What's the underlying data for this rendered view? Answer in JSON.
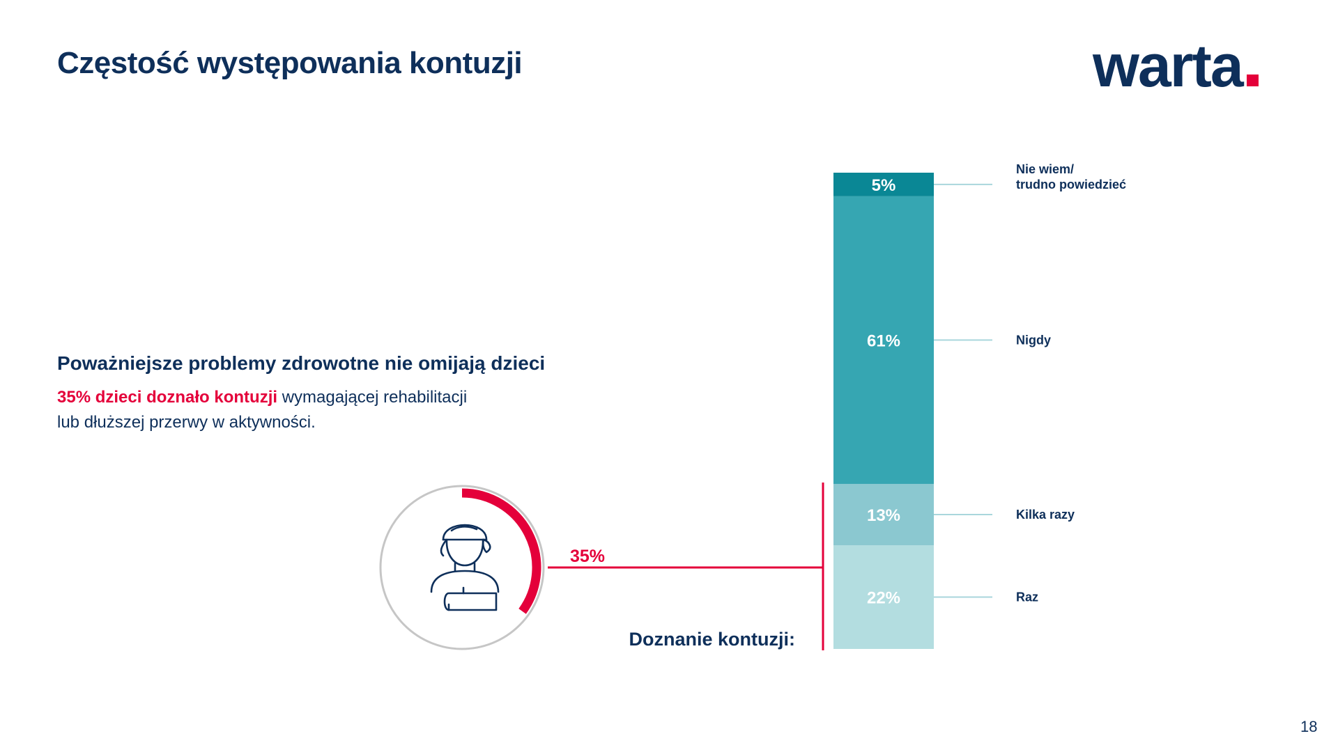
{
  "page": {
    "title": "Częstość występowania kontuzji",
    "logo": "warta",
    "page_number": "18"
  },
  "text_block": {
    "headline": "Poważniejsze problemy zdrowotne nie omijają dzieci",
    "highlight": "35% dzieci doznało kontuzji",
    "rest": " wymagającej rehabilitacji lub dłuższej przerwy w aktywności."
  },
  "colors": {
    "brand_navy": "#0e2f5a",
    "accent_red": "#e4003a",
    "ring_grey": "#c6c6c6",
    "leader_line": "#a9d6dc"
  },
  "icon": "child-with-arm-sling-icon",
  "chart_data": {
    "type": "bar",
    "stacked": true,
    "orientation": "vertical",
    "unit": "%",
    "segments": [
      {
        "label": "Raz",
        "value": 22,
        "value_label": "22%",
        "color": "#b3dde0"
      },
      {
        "label": "Kilka razy",
        "value": 13,
        "value_label": "13%",
        "color": "#8bc8d0"
      },
      {
        "label": "Nigdy",
        "value": 61,
        "value_label": "61%",
        "color": "#36a6b2"
      },
      {
        "label": "Nie wiem/\ntrudno powiedzieć",
        "value": 5,
        "value_label": "5%",
        "color": "#0a8795"
      }
    ],
    "injury_group": {
      "label": "Doznanie kontuzji:",
      "value": 35,
      "value_label": "35%",
      "includes": [
        "Raz",
        "Kilka razy"
      ]
    }
  }
}
